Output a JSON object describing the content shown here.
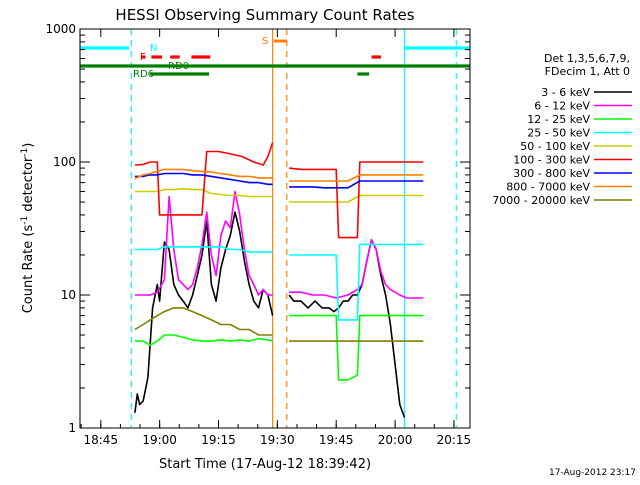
{
  "chart_data": {
    "type": "line",
    "title": "HESSI Observing Summary Count Rates",
    "xlabel": "Start Time (17-Aug-12 18:39:42)",
    "ylabel": "Count Rate (s",
    "ylabel_sup1": "-1",
    "ylabel_mid": " detector",
    "ylabel_sup2": "-1",
    "ylabel_end": ")",
    "footer": "17-Aug-2012 23:17",
    "y_scale": "log",
    "xlim_min": [
      18.6617,
      20.3183
    ],
    "ylim": [
      1,
      1000
    ],
    "x_ticks": [
      {
        "label": "18:45",
        "t": 18.75
      },
      {
        "label": "19:00",
        "t": 19.0
      },
      {
        "label": "19:15",
        "t": 19.25
      },
      {
        "label": "19:30",
        "t": 19.5
      },
      {
        "label": "19:45",
        "t": 19.75
      },
      {
        "label": "20:00",
        "t": 20.0
      },
      {
        "label": "20:15",
        "t": 20.25
      }
    ],
    "y_ticks": [
      {
        "label": "1",
        "v": 1
      },
      {
        "label": "10",
        "v": 10
      },
      {
        "label": "100",
        "v": 100
      },
      {
        "label": "1000",
        "v": 1000
      }
    ],
    "legend_header": [
      "Det 1,3,5,6,7,9,",
      "FDecim 1, Att 0"
    ],
    "series": [
      {
        "name": "3 - 6 keV",
        "color": "#000000",
        "segments": [
          {
            "x": [
              18.895,
              18.905,
              18.915,
              18.93,
              18.95,
              18.97,
              18.99,
              19.0,
              19.02,
              19.04,
              19.06,
              19.08,
              19.1,
              19.12,
              19.14,
              19.16,
              19.18,
              19.2,
              19.22,
              19.24,
              19.26,
              19.28,
              19.3,
              19.32,
              19.34,
              19.36,
              19.38,
              19.4,
              19.42,
              19.44,
              19.46,
              19.48
            ],
            "y": [
              1.3,
              1.8,
              1.5,
              1.6,
              2.4,
              8,
              12,
              9,
              25,
              22,
              12,
              10,
              9,
              8,
              10,
              14,
              20,
              36,
              12,
              9,
              16,
              22,
              28,
              42,
              30,
              18,
              12,
              9,
              8,
              11,
              10,
              7
            ]
          },
          {
            "x": [
              19.55,
              19.57,
              19.6,
              19.63,
              19.66,
              19.69,
              19.72,
              19.74,
              19.76,
              19.78,
              19.8,
              19.82,
              19.84,
              19.86,
              19.88,
              19.9,
              19.92,
              19.94,
              19.96,
              19.98,
              20.0,
              20.02,
              20.04
            ],
            "y": [
              10,
              9,
              9,
              8,
              9,
              8,
              8,
              7.5,
              8,
              9,
              9,
              10,
              10,
              12,
              18,
              26,
              22,
              14,
              10,
              6,
              3,
              1.5,
              1.2
            ]
          }
        ]
      },
      {
        "name": "6 - 12 keV",
        "color": "#ff00ff",
        "segments": [
          {
            "x": [
              18.895,
              18.93,
              18.96,
              18.99,
              19.02,
              19.04,
              19.06,
              19.08,
              19.1,
              19.12,
              19.14,
              19.16,
              19.18,
              19.2,
              19.22,
              19.24,
              19.26,
              19.28,
              19.3,
              19.32,
              19.34,
              19.36,
              19.38,
              19.4,
              19.42,
              19.44,
              19.46,
              19.48
            ],
            "y": [
              10,
              10,
              10,
              10.5,
              13,
              55,
              22,
              13,
              12,
              11,
              12,
              16,
              24,
              42,
              20,
              14,
              28,
              36,
              32,
              60,
              40,
              22,
              14,
              12,
              10,
              11,
              10,
              10
            ]
          },
          {
            "x": [
              19.55,
              19.6,
              19.65,
              19.7,
              19.75,
              19.8,
              19.84,
              19.86,
              19.88,
              19.9,
              19.92,
              19.94,
              19.96,
              19.98,
              20.0,
              20.02,
              20.05,
              20.08,
              20.12
            ],
            "y": [
              10.5,
              10.5,
              10,
              10,
              9.5,
              10,
              11,
              12,
              18,
              26,
              22,
              15,
              12,
              11,
              10.5,
              10,
              9.5,
              9.5,
              9.5
            ]
          }
        ]
      },
      {
        "name": "12 - 25 keV",
        "color": "#00ff00",
        "segments": [
          {
            "x": [
              18.895,
              18.93,
              18.96,
              18.99,
              19.02,
              19.06,
              19.1,
              19.14,
              19.18,
              19.22,
              19.26,
              19.3,
              19.34,
              19.38,
              19.42,
              19.46,
              19.48
            ],
            "y": [
              4.5,
              4.5,
              4.2,
              4.5,
              5,
              5,
              4.8,
              4.6,
              4.5,
              4.5,
              4.6,
              4.5,
              4.6,
              4.5,
              4.7,
              4.6,
              4.5
            ]
          },
          {
            "x": [
              19.55,
              19.6,
              19.65,
              19.7,
              19.75,
              19.76,
              19.8,
              19.84,
              19.85,
              19.88,
              19.92,
              19.96,
              20.0,
              20.05,
              20.08,
              20.12
            ],
            "y": [
              7,
              7,
              7,
              7,
              7,
              2.3,
              2.3,
              2.5,
              7,
              7,
              7,
              7,
              7,
              7,
              7,
              7
            ]
          }
        ]
      },
      {
        "name": "25 - 50 keV",
        "color": "#00ffff",
        "segments": [
          {
            "x": [
              18.895,
              18.93,
              18.96,
              18.99,
              19.02,
              19.06,
              19.1,
              19.14,
              19.18,
              19.22,
              19.26,
              19.3,
              19.34,
              19.38,
              19.42,
              19.46,
              19.48
            ],
            "y": [
              22,
              22,
              22,
              22,
              23,
              23,
              23,
              23,
              23,
              23,
              23,
              22,
              22,
              21,
              21,
              21,
              21
            ]
          },
          {
            "x": [
              19.55,
              19.6,
              19.65,
              19.7,
              19.75,
              19.76,
              19.8,
              19.84,
              19.85,
              19.88,
              19.92,
              19.96,
              20.0,
              20.05,
              20.08,
              20.12
            ],
            "y": [
              20,
              20,
              20,
              20,
              20,
              6.5,
              6.5,
              6.5,
              24,
              24,
              24,
              24,
              24,
              24,
              24,
              24
            ]
          }
        ]
      },
      {
        "name": "50 - 100 keV",
        "color": "#cccc00",
        "segments": [
          {
            "x": [
              18.895,
              18.93,
              18.96,
              18.99,
              19.02,
              19.06,
              19.1,
              19.14,
              19.18,
              19.22,
              19.26,
              19.3,
              19.34,
              19.38,
              19.42,
              19.46,
              19.48
            ],
            "y": [
              60,
              60,
              60,
              60,
              62,
              62,
              63,
              62,
              62,
              58,
              57,
              56,
              56,
              55,
              55,
              55,
              55
            ]
          },
          {
            "x": [
              19.55,
              19.6,
              19.65,
              19.7,
              19.75,
              19.8,
              19.85,
              19.88,
              19.92,
              19.96,
              20.0,
              20.05,
              20.08,
              20.12
            ],
            "y": [
              50,
              50,
              50,
              50,
              50,
              50,
              56,
              56,
              56,
              56,
              56,
              56,
              56,
              56
            ]
          }
        ]
      },
      {
        "name": "100 - 300 keV",
        "color": "#ff0000",
        "segments": [
          {
            "x": [
              18.895,
              18.93,
              18.96,
              18.99,
              19.0,
              19.04,
              19.08,
              19.1,
              19.14,
              19.18,
              19.2,
              19.25,
              19.3,
              19.35,
              19.4,
              19.44,
              19.46,
              19.48
            ],
            "y": [
              95,
              96,
              100,
              100,
              40,
              40,
              40,
              40,
              40,
              40,
              120,
              120,
              115,
              110,
              100,
              95,
              110,
              140
            ]
          },
          {
            "x": [
              19.55,
              19.6,
              19.65,
              19.7,
              19.75,
              19.76,
              19.8,
              19.84,
              19.85,
              19.88,
              19.92,
              19.96,
              20.0,
              20.05,
              20.08,
              20.12
            ],
            "y": [
              90,
              88,
              88,
              88,
              88,
              27,
              27,
              27,
              100,
              100,
              100,
              100,
              100,
              100,
              100,
              100
            ]
          }
        ]
      },
      {
        "name": "300 - 800 keV",
        "color": "#0000ff",
        "segments": [
          {
            "x": [
              18.895,
              18.93,
              18.96,
              18.99,
              19.02,
              19.06,
              19.1,
              19.14,
              19.18,
              19.22,
              19.26,
              19.3,
              19.34,
              19.38,
              19.42,
              19.46,
              19.48
            ],
            "y": [
              78,
              78,
              80,
              80,
              82,
              82,
              82,
              80,
              80,
              78,
              76,
              74,
              72,
              70,
              70,
              68,
              68
            ]
          },
          {
            "x": [
              19.55,
              19.6,
              19.65,
              19.7,
              19.75,
              19.8,
              19.85,
              19.88,
              19.92,
              19.96,
              20.0,
              20.05,
              20.08,
              20.12
            ],
            "y": [
              65,
              65,
              65,
              64,
              64,
              64,
              72,
              72,
              72,
              72,
              72,
              72,
              72,
              72
            ]
          }
        ]
      },
      {
        "name": "800 - 7000 keV",
        "color": "#ff8000",
        "segments": [
          {
            "x": [
              18.895,
              18.93,
              18.96,
              18.99,
              19.02,
              19.06,
              19.1,
              19.14,
              19.18,
              19.22,
              19.26,
              19.3,
              19.34,
              19.38,
              19.42,
              19.46,
              19.48
            ],
            "y": [
              75,
              80,
              82,
              85,
              88,
              88,
              88,
              86,
              85,
              84,
              82,
              80,
              78,
              78,
              76,
              76,
              76
            ]
          },
          {
            "x": [
              19.55,
              19.6,
              19.65,
              19.7,
              19.75,
              19.8,
              19.85,
              19.88,
              19.92,
              19.96,
              20.0,
              20.05,
              20.08,
              20.12
            ],
            "y": [
              72,
              72,
              72,
              72,
              72,
              72,
              80,
              80,
              80,
              80,
              80,
              80,
              80,
              80
            ]
          }
        ]
      },
      {
        "name": "7000 - 20000 keV",
        "color": "#808000",
        "segments": [
          {
            "x": [
              18.895,
              18.93,
              18.96,
              18.99,
              19.02,
              19.06,
              19.1,
              19.14,
              19.18,
              19.22,
              19.26,
              19.3,
              19.34,
              19.38,
              19.42,
              19.46,
              19.48
            ],
            "y": [
              5.5,
              6,
              6.5,
              7,
              7.5,
              8,
              8,
              7.5,
              7,
              6.5,
              6,
              6,
              5.5,
              5.5,
              5,
              5,
              5
            ]
          },
          {
            "x": [
              19.55,
              19.6,
              19.65,
              19.7,
              19.75,
              19.8,
              19.85,
              19.88,
              19.92,
              19.96,
              20.0,
              20.05,
              20.08,
              20.12
            ],
            "y": [
              4.5,
              4.5,
              4.5,
              4.5,
              4.5,
              4.5,
              4.5,
              4.5,
              4.5,
              4.5,
              4.5,
              4.5,
              4.5,
              4.5
            ]
          }
        ]
      }
    ],
    "flag_bars": [
      {
        "label": "N",
        "color": "#00ffff",
        "segments": [
          [
            18.6617,
            18.87
          ],
          [
            20.04,
            20.3183
          ]
        ]
      },
      {
        "label": "F",
        "color": "#ff0000",
        "segments": [
          [
            18.92,
            18.94
          ],
          [
            18.965,
            19.01
          ],
          [
            19.045,
            19.085
          ],
          [
            19.135,
            19.215
          ],
          [
            19.9,
            19.94
          ]
        ]
      },
      {
        "label": "S",
        "color": "#ff8000",
        "segments": [
          [
            19.485,
            19.54
          ]
        ]
      },
      {
        "label": "RD0",
        "color": "#008000",
        "segments": [
          [
            18.6617,
            20.3183
          ]
        ]
      },
      {
        "label": "RD6",
        "color": "#008000",
        "segments": [
          [
            18.96,
            19.21
          ],
          [
            19.84,
            19.89
          ]
        ]
      }
    ],
    "vlines": [
      {
        "t": 18.6617,
        "color": "#00ffff",
        "style": "solid"
      },
      {
        "t": 18.88,
        "color": "#00ffff",
        "style": "dashed"
      },
      {
        "t": 19.48,
        "color": "#ff8000",
        "style": "solid"
      },
      {
        "t": 19.54,
        "color": "#ff8000",
        "style": "dashed"
      },
      {
        "t": 20.04,
        "color": "#00ffff",
        "style": "solid"
      },
      {
        "t": 20.26,
        "color": "#00ffff",
        "style": "dashed"
      }
    ]
  }
}
